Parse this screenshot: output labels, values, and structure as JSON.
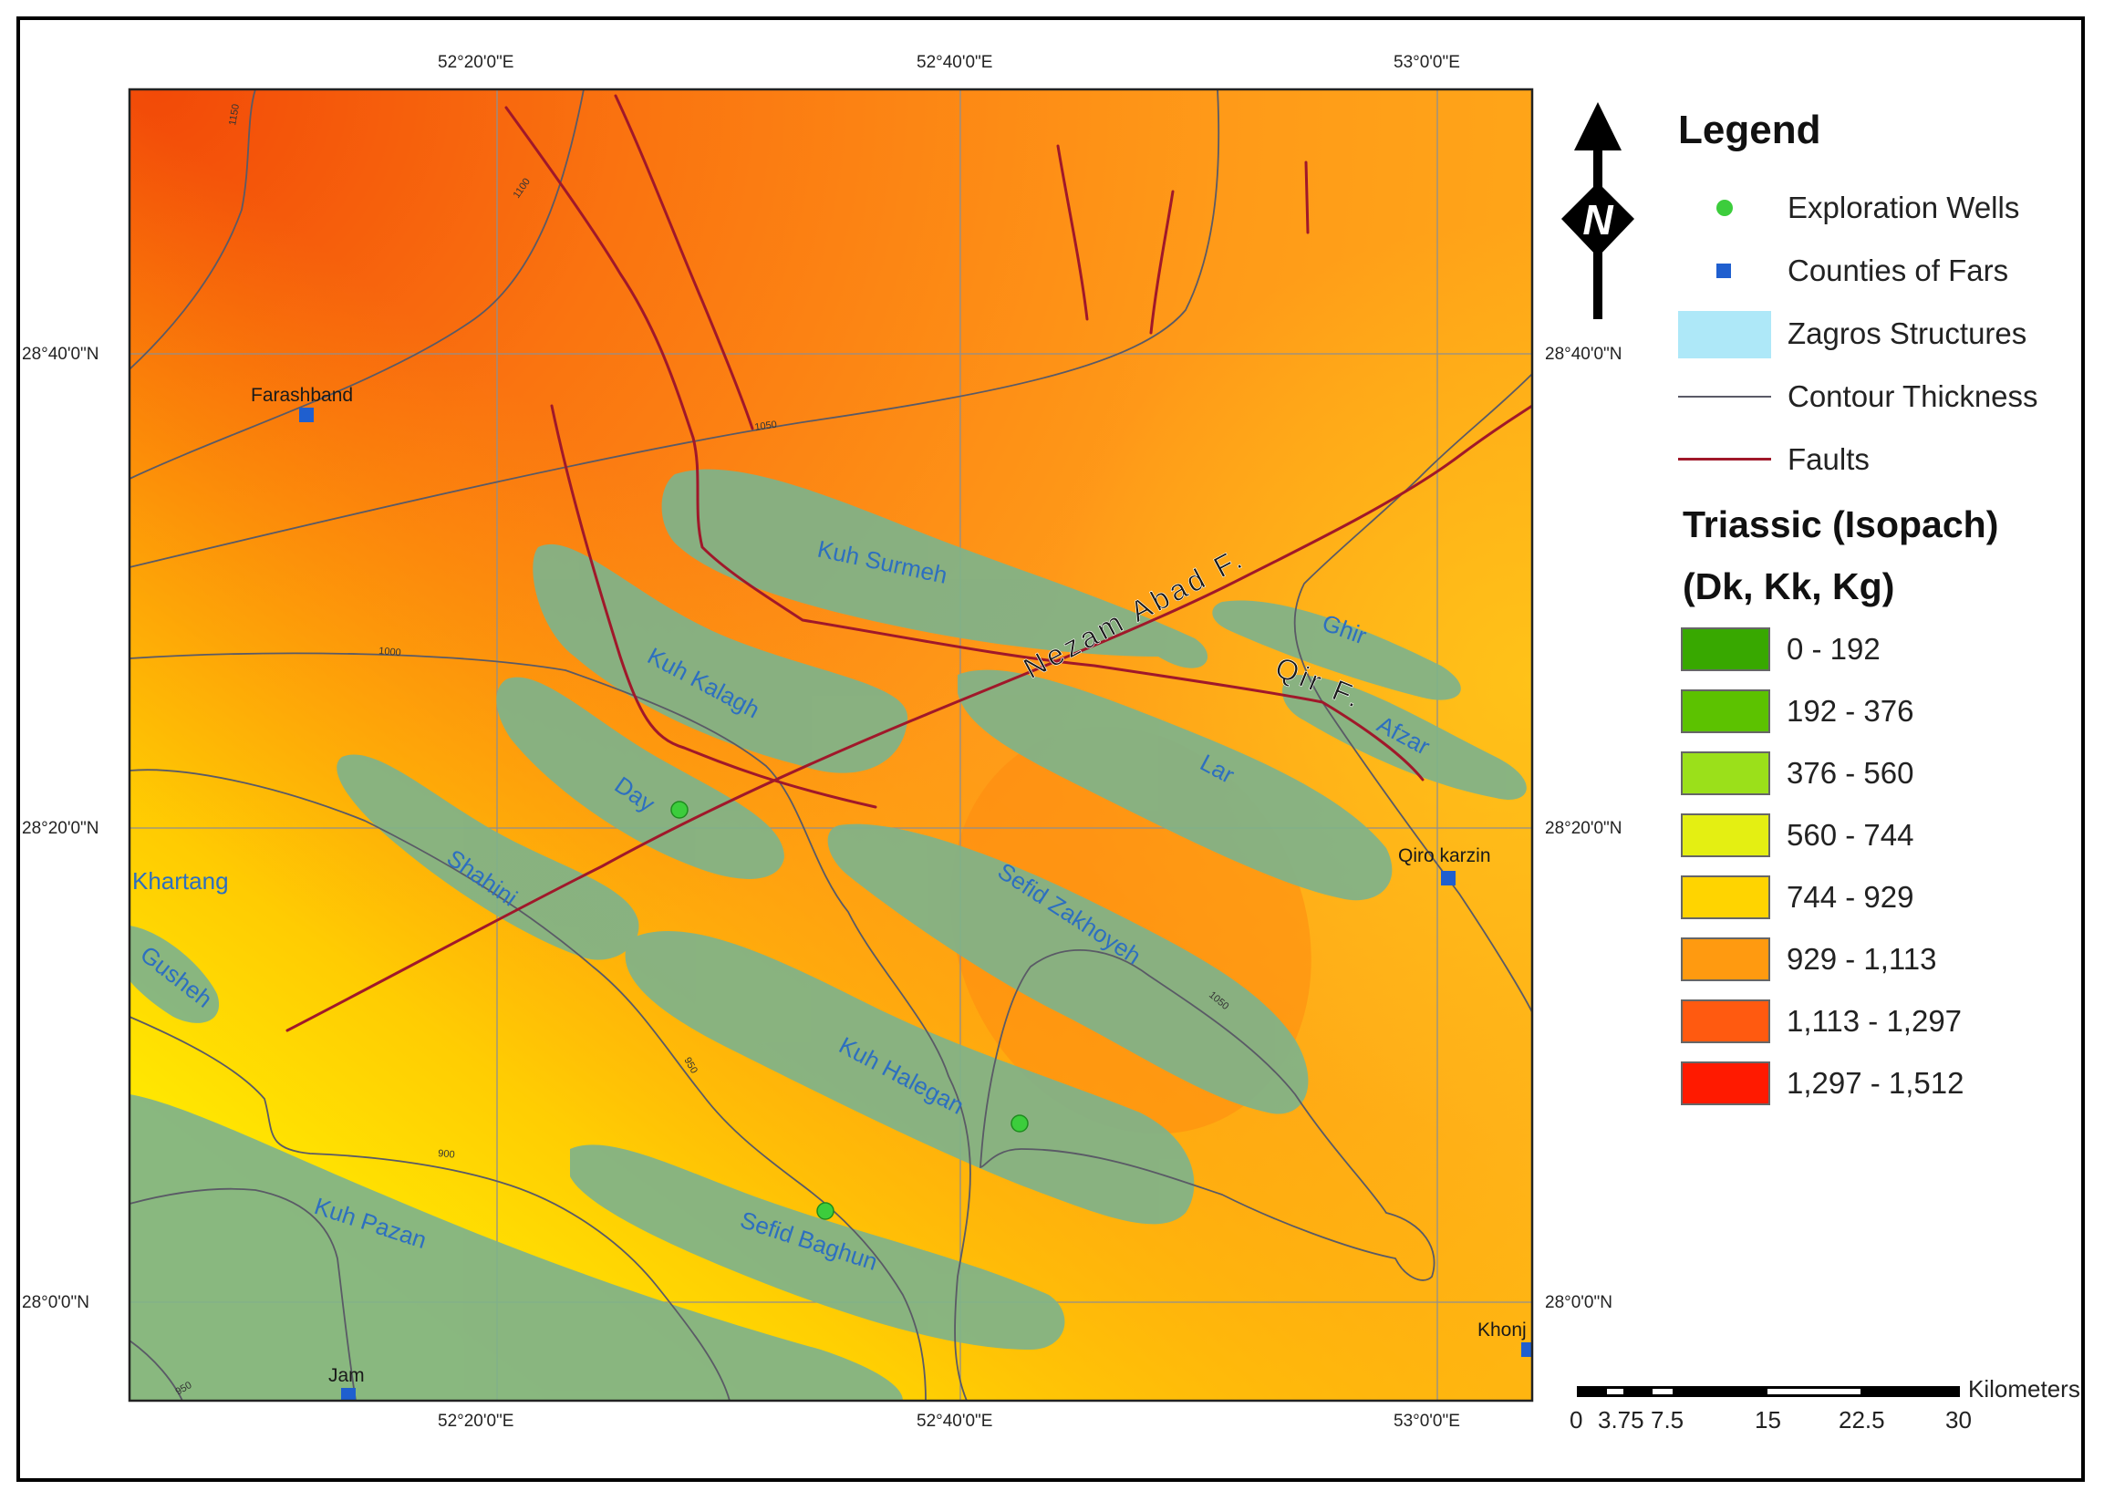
{
  "map": {
    "coords": {
      "top_lon": [
        "52°20'0\"E",
        "52°40'0\"E",
        "53°0'0\"E"
      ],
      "bottom_lon": [
        "52°20'0\"E",
        "52°40'0\"E",
        "53°0'0\"E"
      ],
      "left_lat": [
        "28°40'0\"N",
        "28°20'0\"N",
        "28°0'0\"N"
      ],
      "right_lat": [
        "28°40'0\"N",
        "28°20'0\"N",
        "28°0'0\"N"
      ]
    },
    "structures": [
      "Kuh Surmeh",
      "Kuh Kalagh",
      "Day",
      "Shahini",
      "Khartang",
      "Gusheh",
      "Ghir",
      "Afzar",
      "Lar",
      "Sefid Zakhoyeh",
      "Kuh Halegan",
      "Kuh Pazan",
      "Sefid Baghun"
    ],
    "faults": [
      "Nezam Abad F.",
      "Qir F."
    ],
    "counties": [
      "Farashband",
      "Qiro karzin",
      "Jam",
      "Khonj"
    ],
    "contour_labels": [
      "1150",
      "1100",
      "1050",
      "1000",
      "950",
      "900",
      "950",
      "1050"
    ]
  },
  "north_arrow": {
    "label": "N"
  },
  "legend": {
    "title": "Legend",
    "items": [
      {
        "label": "Exploration Wells",
        "icon": "green-dot-icon"
      },
      {
        "label": "Counties of Fars",
        "icon": "blue-square-icon"
      },
      {
        "label": "Zagros Structures",
        "icon": "light-blue-rect-icon"
      },
      {
        "label": "Contour Thickness",
        "icon": "gray-line-icon"
      },
      {
        "label": "Faults",
        "icon": "red-line-icon"
      }
    ],
    "isopach_title": "Triassic (Isopach)",
    "isopach_subtitle": "(Dk, Kk, Kg)",
    "classes": [
      {
        "label": "0 - 192",
        "color": "#38a800"
      },
      {
        "label": "192 - 376",
        "color": "#5cc200"
      },
      {
        "label": "376 - 560",
        "color": "#9be01a"
      },
      {
        "label": "560 - 744",
        "color": "#e4ef12"
      },
      {
        "label": "744 - 929",
        "color": "#ffd400"
      },
      {
        "label": "929 - 1,113",
        "color": "#ff9a10"
      },
      {
        "label": "1,113 - 1,297",
        "color": "#ff5a10"
      },
      {
        "label": "1,297 - 1,512",
        "color": "#ff1a00"
      }
    ]
  },
  "scale_bar": {
    "unit": "Kilometers",
    "ticks": [
      "0",
      "3.75",
      "7.5",
      "15",
      "22.5",
      "30"
    ]
  },
  "colors": {
    "structure_fill": "#7fb38a",
    "structure_text": "#2d6fc0",
    "fault": "#a0182a",
    "contour": "#5a5a66",
    "well": "#3ccd3c",
    "county": "#1f5fcf"
  }
}
